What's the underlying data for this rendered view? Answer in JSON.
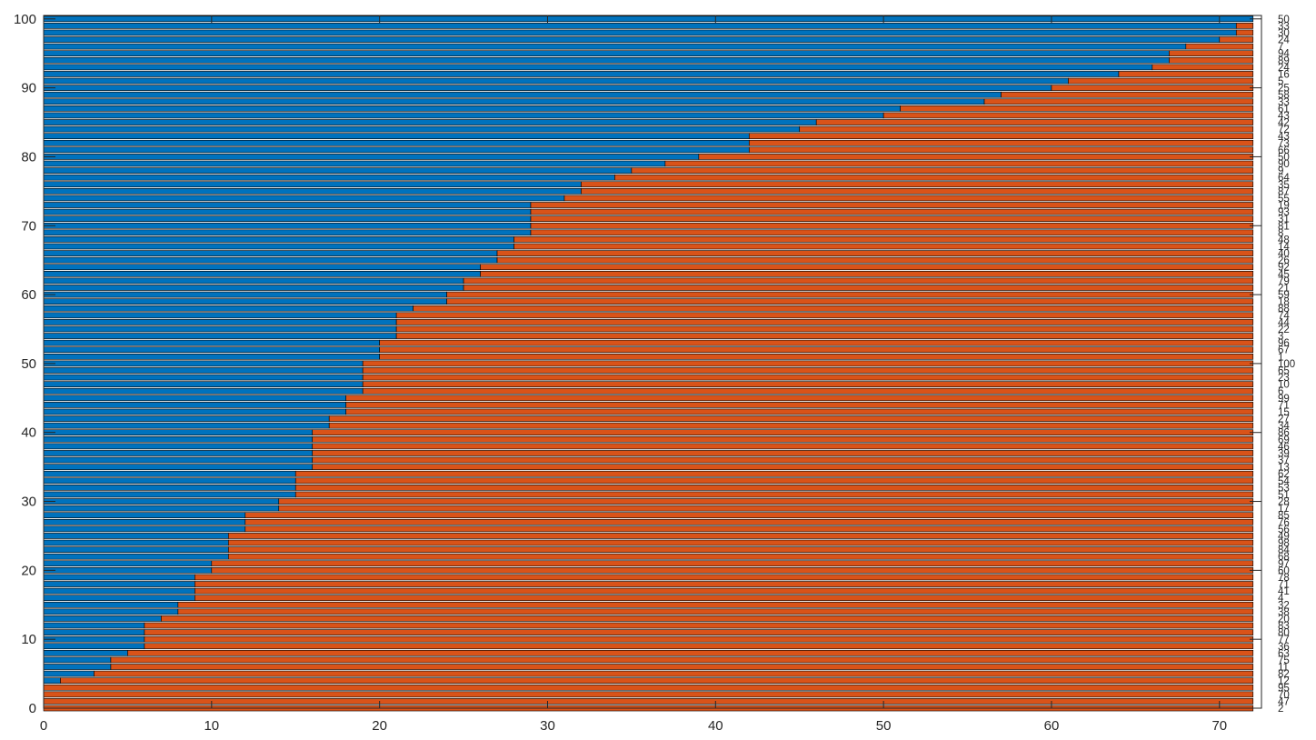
{
  "chart_data": {
    "type": "bar",
    "orientation": "horizontal",
    "stacked": true,
    "colors": {
      "first": "#0072BD",
      "second": "#D95319",
      "edge": "#000000"
    },
    "xlim": [
      0,
      72.5
    ],
    "ylim": [
      0,
      100.5
    ],
    "xticks": [
      0,
      10,
      20,
      30,
      40,
      50,
      60,
      70
    ],
    "yticks": [
      0,
      10,
      20,
      30,
      40,
      50,
      60,
      70,
      80,
      90,
      100
    ],
    "xtick_labels": [
      "0",
      "10",
      "20",
      "30",
      "40",
      "50",
      "60",
      "70"
    ],
    "ytick_labels": [
      "0",
      "10",
      "20",
      "30",
      "40",
      "50",
      "60",
      "70",
      "80",
      "90",
      "100"
    ],
    "total": 72,
    "rows": [
      {
        "y": 1,
        "first": 0,
        "label": "2"
      },
      {
        "y": 2,
        "first": 0,
        "label": "47"
      },
      {
        "y": 3,
        "first": 0,
        "label": "70"
      },
      {
        "y": 4,
        "first": 0,
        "label": "95"
      },
      {
        "y": 5,
        "first": 1,
        "label": "12"
      },
      {
        "y": 6,
        "first": 3,
        "label": "82"
      },
      {
        "y": 7,
        "first": 4,
        "label": "11"
      },
      {
        "y": 8,
        "first": 4,
        "label": "75"
      },
      {
        "y": 9,
        "first": 5,
        "label": "63"
      },
      {
        "y": 10,
        "first": 6,
        "label": "36"
      },
      {
        "y": 11,
        "first": 6,
        "label": "77"
      },
      {
        "y": 12,
        "first": 6,
        "label": "80"
      },
      {
        "y": 13,
        "first": 6,
        "label": "83"
      },
      {
        "y": 14,
        "first": 7,
        "label": "20"
      },
      {
        "y": 15,
        "first": 8,
        "label": "38"
      },
      {
        "y": 16,
        "first": 8,
        "label": "32"
      },
      {
        "y": 17,
        "first": 9,
        "label": "4"
      },
      {
        "y": 18,
        "first": 9,
        "label": "41"
      },
      {
        "y": 19,
        "first": 9,
        "label": "71"
      },
      {
        "y": 20,
        "first": 9,
        "label": "78"
      },
      {
        "y": 21,
        "first": 10,
        "label": "60"
      },
      {
        "y": 22,
        "first": 10,
        "label": "97"
      },
      {
        "y": 23,
        "first": 11,
        "label": "68"
      },
      {
        "y": 24,
        "first": 11,
        "label": "84"
      },
      {
        "y": 25,
        "first": 11,
        "label": "98"
      },
      {
        "y": 26,
        "first": 11,
        "label": "49"
      },
      {
        "y": 27,
        "first": 12,
        "label": "56"
      },
      {
        "y": 28,
        "first": 12,
        "label": "76"
      },
      {
        "y": 29,
        "first": 12,
        "label": "85"
      },
      {
        "y": 30,
        "first": 14,
        "label": "17"
      },
      {
        "y": 31,
        "first": 14,
        "label": "28"
      },
      {
        "y": 32,
        "first": 15,
        "label": "51"
      },
      {
        "y": 33,
        "first": 15,
        "label": "53"
      },
      {
        "y": 34,
        "first": 15,
        "label": "54"
      },
      {
        "y": 35,
        "first": 15,
        "label": "62"
      },
      {
        "y": 36,
        "first": 16,
        "label": "13"
      },
      {
        "y": 37,
        "first": 16,
        "label": "37"
      },
      {
        "y": 38,
        "first": 16,
        "label": "39"
      },
      {
        "y": 39,
        "first": 16,
        "label": "46"
      },
      {
        "y": 40,
        "first": 16,
        "label": "69"
      },
      {
        "y": 41,
        "first": 16,
        "label": "86"
      },
      {
        "y": 42,
        "first": 17,
        "label": "34"
      },
      {
        "y": 43,
        "first": 17,
        "label": "27"
      },
      {
        "y": 44,
        "first": 18,
        "label": "15"
      },
      {
        "y": 45,
        "first": 18,
        "label": "71"
      },
      {
        "y": 46,
        "first": 18,
        "label": "99"
      },
      {
        "y": 47,
        "first": 19,
        "label": "6"
      },
      {
        "y": 48,
        "first": 19,
        "label": "10"
      },
      {
        "y": 49,
        "first": 19,
        "label": "23"
      },
      {
        "y": 50,
        "first": 19,
        "label": "65"
      },
      {
        "y": 51,
        "first": 19,
        "label": "100"
      },
      {
        "y": 52,
        "first": 20,
        "label": "1"
      },
      {
        "y": 53,
        "first": 20,
        "label": "67"
      },
      {
        "y": 54,
        "first": 20,
        "label": "96"
      },
      {
        "y": 55,
        "first": 21,
        "label": "3"
      },
      {
        "y": 56,
        "first": 21,
        "label": "22"
      },
      {
        "y": 57,
        "first": 21,
        "label": "44"
      },
      {
        "y": 58,
        "first": 21,
        "label": "74"
      },
      {
        "y": 59,
        "first": 22,
        "label": "88"
      },
      {
        "y": 60,
        "first": 24,
        "label": "18"
      },
      {
        "y": 61,
        "first": 24,
        "label": "59"
      },
      {
        "y": 62,
        "first": 25,
        "label": "21"
      },
      {
        "y": 63,
        "first": 25,
        "label": "79"
      },
      {
        "y": 64,
        "first": 26,
        "label": "45"
      },
      {
        "y": 65,
        "first": 26,
        "label": "92"
      },
      {
        "y": 66,
        "first": 27,
        "label": "26"
      },
      {
        "y": 67,
        "first": 27,
        "label": "40"
      },
      {
        "y": 68,
        "first": 28,
        "label": "14"
      },
      {
        "y": 69,
        "first": 28,
        "label": "48"
      },
      {
        "y": 70,
        "first": 29,
        "label": "8"
      },
      {
        "y": 71,
        "first": 29,
        "label": "81"
      },
      {
        "y": 72,
        "first": 29,
        "label": "31"
      },
      {
        "y": 73,
        "first": 29,
        "label": "93"
      },
      {
        "y": 74,
        "first": 29,
        "label": "19"
      },
      {
        "y": 75,
        "first": 31,
        "label": "55"
      },
      {
        "y": 76,
        "first": 32,
        "label": "87"
      },
      {
        "y": 77,
        "first": 32,
        "label": "35"
      },
      {
        "y": 78,
        "first": 34,
        "label": "64"
      },
      {
        "y": 79,
        "first": 35,
        "label": "9"
      },
      {
        "y": 80,
        "first": 37,
        "label": "90"
      },
      {
        "y": 81,
        "first": 39,
        "label": "50"
      },
      {
        "y": 82,
        "first": 42,
        "label": "66"
      },
      {
        "y": 83,
        "first": 42,
        "label": "73"
      },
      {
        "y": 84,
        "first": 42,
        "label": "43"
      },
      {
        "y": 85,
        "first": 45,
        "label": "72"
      },
      {
        "y": 86,
        "first": 46,
        "label": "42"
      },
      {
        "y": 87,
        "first": 50,
        "label": "43"
      },
      {
        "y": 88,
        "first": 51,
        "label": "61"
      },
      {
        "y": 89,
        "first": 56,
        "label": "33"
      },
      {
        "y": 90,
        "first": 57,
        "label": "58"
      },
      {
        "y": 91,
        "first": 60,
        "label": "25"
      },
      {
        "y": 92,
        "first": 61,
        "label": "5"
      },
      {
        "y": 93,
        "first": 64,
        "label": "16"
      },
      {
        "y": 94,
        "first": 66,
        "label": "24"
      },
      {
        "y": 95,
        "first": 67,
        "label": "89"
      },
      {
        "y": 96,
        "first": 67,
        "label": "94"
      },
      {
        "y": 97,
        "first": 68,
        "label": "7"
      },
      {
        "y": 98,
        "first": 70,
        "label": "24"
      },
      {
        "y": 99,
        "first": 71,
        "label": "30"
      },
      {
        "y": 100,
        "first": 71,
        "label": "33"
      },
      {
        "y": 101,
        "first": 72,
        "label": "50"
      }
    ]
  }
}
